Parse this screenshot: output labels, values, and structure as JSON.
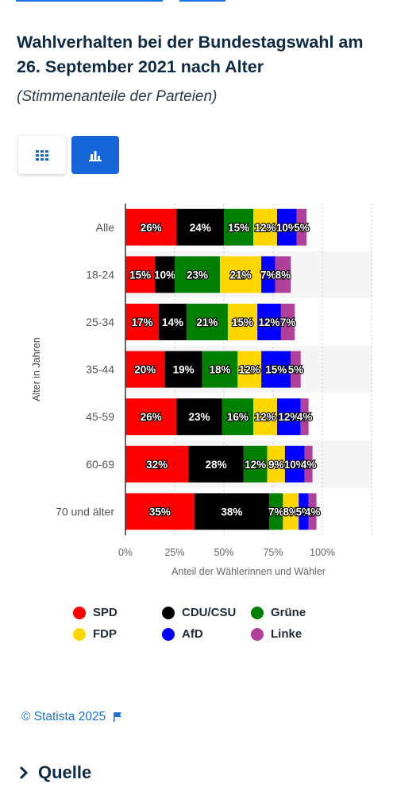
{
  "title": "Wahlverhalten bei der Bundestagswahl am 26. September 2021 nach Alter",
  "subtitle": "(Stimmenanteile der Parteien)",
  "view_buttons": [
    {
      "name": "table-view",
      "icon": "grid-icon"
    },
    {
      "name": "chart-view",
      "icon": "bar-chart-icon",
      "active": true
    }
  ],
  "colors": {
    "accent": "#1565d8",
    "credit": "#1a6fd1"
  },
  "chart_data": {
    "type": "bar",
    "orientation": "horizontal",
    "stacked": true,
    "categories": [
      "Alle",
      "18-24",
      "25-34",
      "35-44",
      "45-59",
      "60-69",
      "70 und älter"
    ],
    "series": [
      {
        "name": "SPD",
        "color": "#ff0000",
        "values": [
          26,
          15,
          17,
          20,
          26,
          32,
          35
        ]
      },
      {
        "name": "CDU/CSU",
        "color": "#000000",
        "values": [
          24,
          10,
          14,
          19,
          23,
          28,
          38
        ]
      },
      {
        "name": "Grüne",
        "color": "#008000",
        "values": [
          15,
          23,
          21,
          18,
          16,
          12,
          7
        ]
      },
      {
        "name": "FDP",
        "color": "#ffd700",
        "values": [
          12,
          21,
          15,
          12,
          12,
          9,
          8
        ]
      },
      {
        "name": "AfD",
        "color": "#0000ff",
        "values": [
          10,
          7,
          12,
          15,
          12,
          10,
          5
        ]
      },
      {
        "name": "Linke",
        "color": "#b0409a",
        "values": [
          5,
          8,
          7,
          5,
          4,
          4,
          4
        ]
      }
    ],
    "xlabel": "Anteil der Wählerinnen und Wähler",
    "ylabel": "Alter in Jahren",
    "xlim": [
      0,
      125
    ],
    "x_ticks": [
      "0%",
      "25%",
      "50%",
      "75%",
      "100%"
    ],
    "x_tick_values": [
      0,
      25,
      50,
      75,
      100
    ],
    "value_suffix": "%",
    "grid": true,
    "legend_position": "bottom"
  },
  "credit": "© Statista 2025",
  "quelle": "Quelle"
}
